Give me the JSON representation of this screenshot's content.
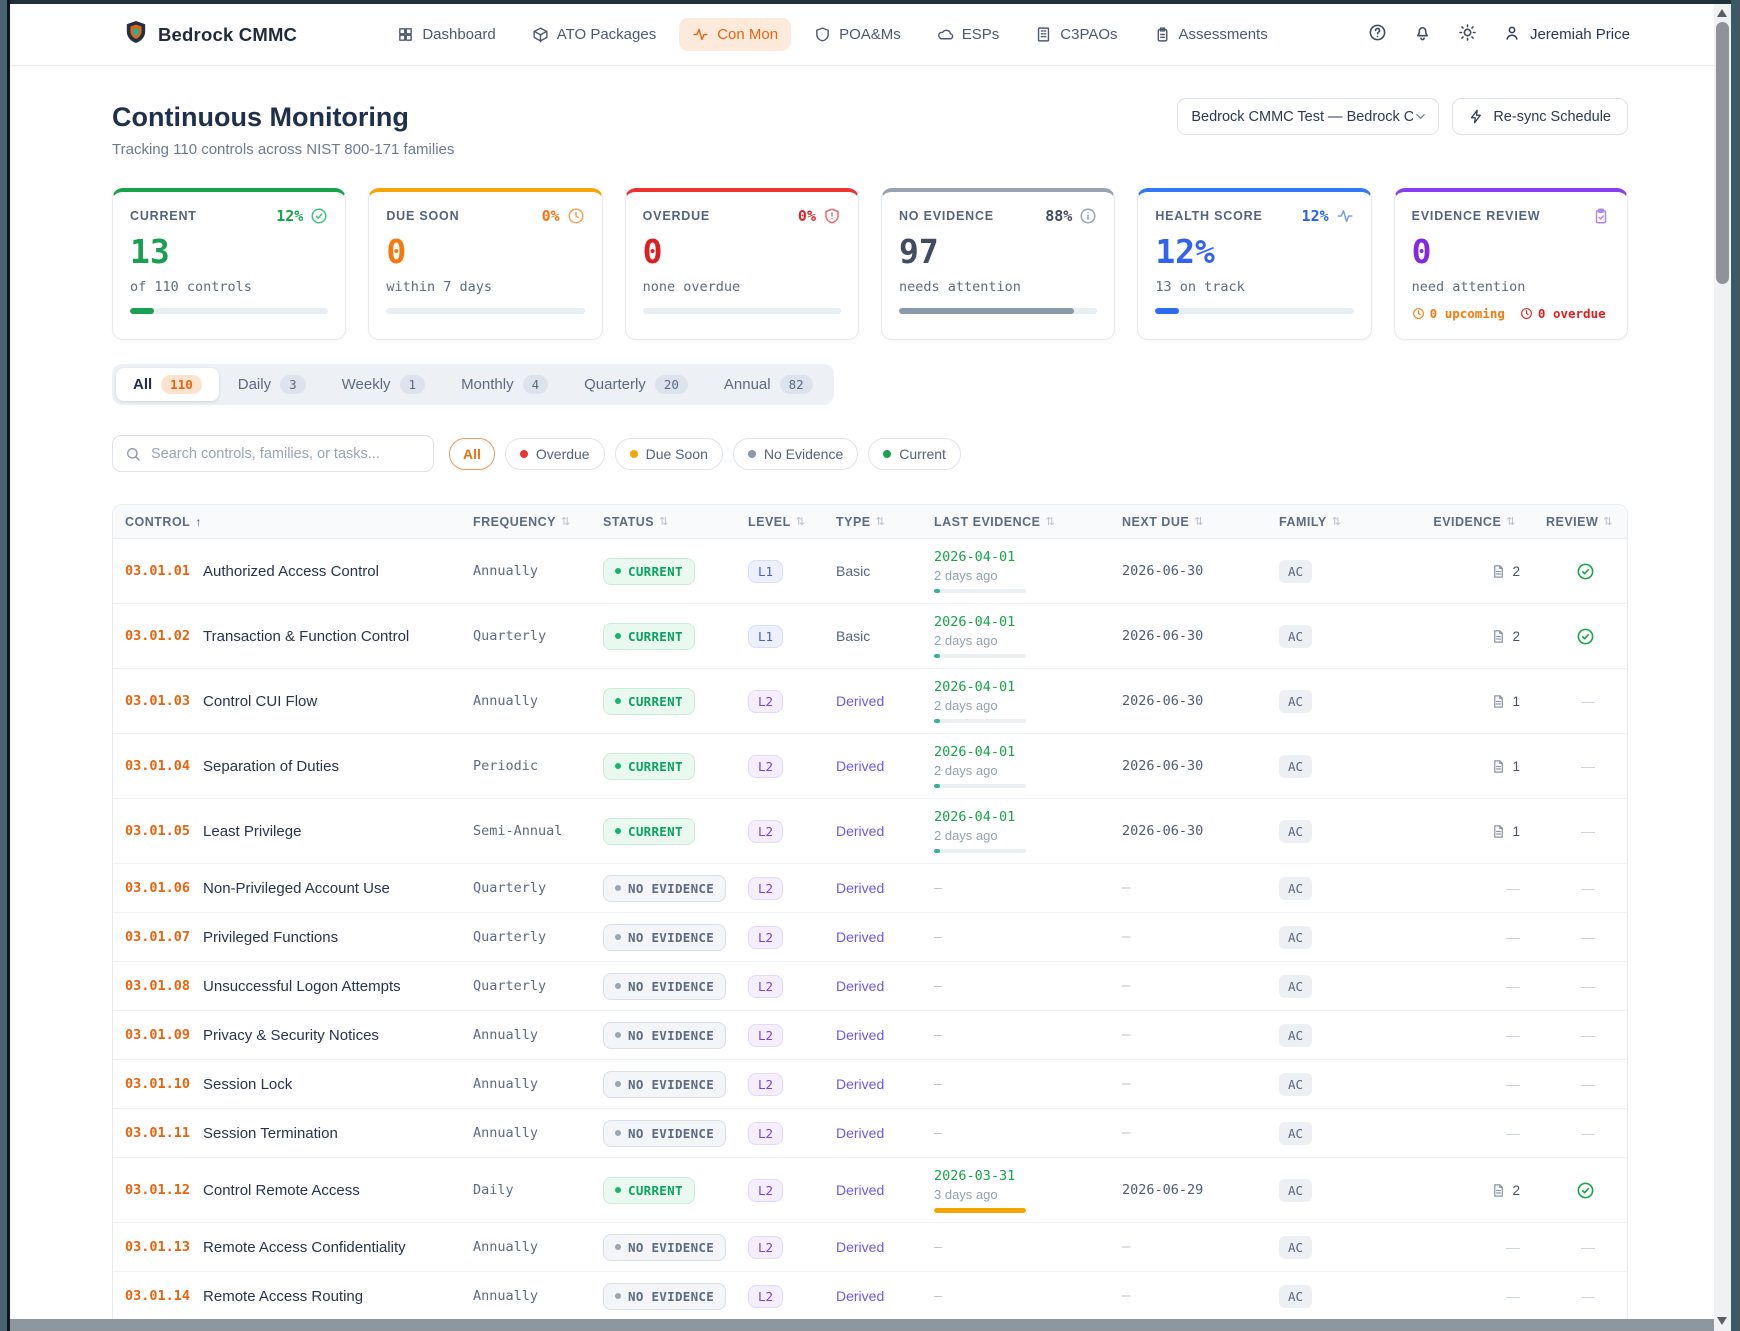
{
  "nav": {
    "brand": "Bedrock CMMC",
    "items": [
      {
        "label": "Dashboard",
        "icon": "grid",
        "active": false
      },
      {
        "label": "ATO Packages",
        "icon": "package",
        "active": false
      },
      {
        "label": "Con Mon",
        "icon": "pulse",
        "active": true
      },
      {
        "label": "POA&Ms",
        "icon": "shield",
        "active": false
      },
      {
        "label": "ESPs",
        "icon": "cloud",
        "active": false
      },
      {
        "label": "C3PAOs",
        "icon": "building",
        "active": false
      },
      {
        "label": "Assessments",
        "icon": "clipboard",
        "active": false
      }
    ],
    "action_icons": [
      {
        "name": "help-icon",
        "icon": "help"
      },
      {
        "name": "bell-icon",
        "icon": "bell"
      },
      {
        "name": "theme-icon",
        "icon": "sun"
      }
    ],
    "user": "Jeremiah Price"
  },
  "header": {
    "title": "Continuous Monitoring",
    "subtitle": "Tracking 110 controls across NIST 800-171 families",
    "package_select": "Bedrock CMMC Test — Bedrock CN",
    "resync_label": "Re-sync Schedule"
  },
  "stats": [
    {
      "label": "CURRENT",
      "pct": "12%",
      "icon": "check-circle",
      "accent": "#16a34a",
      "pct_color": "#16a34a",
      "icon_color": "#3fbf7f",
      "value": "13",
      "value_color": "#17a050",
      "sub": "of 110 controls",
      "progress": 12,
      "bar_color": "#17a050"
    },
    {
      "label": "DUE SOON",
      "pct": "0%",
      "icon": "clock",
      "accent": "#f6a609",
      "pct_color": "#f97316",
      "icon_color": "#f9a05a",
      "value": "0",
      "value_color": "#f9780d",
      "sub": "within 7 days",
      "progress": 0,
      "bar_color": "#f9780d"
    },
    {
      "label": "OVERDUE",
      "pct": "0%",
      "icon": "shield-alert",
      "accent": "#ee3333",
      "pct_color": "#dc2626",
      "icon_color": "#ea6a6a",
      "value": "0",
      "value_color": "#dd1f1f",
      "sub": "none overdue",
      "progress": 0,
      "bar_color": "#dd1f1f"
    },
    {
      "label": "NO EVIDENCE",
      "pct": "88%",
      "icon": "info",
      "accent": "#97a3b1",
      "pct_color": "#3f4c61",
      "icon_color": "#96a3b3",
      "value": "97",
      "value_color": "#3f4c61",
      "sub": "needs attention",
      "progress": 88,
      "bar_color": "#8a99ab"
    },
    {
      "label": "HEALTH SCORE",
      "pct": "12%",
      "icon": "pulse",
      "accent": "#3579f6",
      "pct_color": "#2563eb",
      "icon_color": "#7a9bf5",
      "value": "12%",
      "value_color": "#2f63f0",
      "sub": "13 on track",
      "progress": 12,
      "bar_color": "#2f6bf0"
    },
    {
      "label": "EVIDENCE REVIEW",
      "pct": null,
      "icon": "clipboard-check",
      "accent": "#8b3df2",
      "pct_color": null,
      "icon_color": "#b187ef",
      "value": "0",
      "value_color": "#8429e0",
      "sub": "need attention",
      "progress": null,
      "bar_color": null,
      "footer": [
        {
          "icon": "clock",
          "text": "0 upcoming",
          "color": "#f9780d"
        },
        {
          "icon": "clock",
          "text": "0 overdue",
          "color": "#dd1f1f"
        }
      ]
    }
  ],
  "tabs": [
    {
      "label": "All",
      "count": "110",
      "active": true
    },
    {
      "label": "Daily",
      "count": "3",
      "active": false
    },
    {
      "label": "Weekly",
      "count": "1",
      "active": false
    },
    {
      "label": "Monthly",
      "count": "4",
      "active": false
    },
    {
      "label": "Quarterly",
      "count": "20",
      "active": false
    },
    {
      "label": "Annual",
      "count": "82",
      "active": false
    }
  ],
  "filters": {
    "search_placeholder": "Search controls, families, or tasks...",
    "chips": [
      {
        "label": "All",
        "active": true,
        "dot": null
      },
      {
        "label": "Overdue",
        "active": false,
        "dot": "#ee3333"
      },
      {
        "label": "Due Soon",
        "active": false,
        "dot": "#f6a609"
      },
      {
        "label": "No Evidence",
        "active": false,
        "dot": "#8a99ab"
      },
      {
        "label": "Current",
        "active": false,
        "dot": "#17a050"
      }
    ]
  },
  "table": {
    "columns": [
      {
        "label": "CONTROL",
        "sort": "asc",
        "align": "left"
      },
      {
        "label": "FREQUENCY",
        "sort": "both",
        "align": "left"
      },
      {
        "label": "STATUS",
        "sort": "both",
        "align": "left"
      },
      {
        "label": "LEVEL",
        "sort": "both",
        "align": "left"
      },
      {
        "label": "TYPE",
        "sort": "both",
        "align": "left"
      },
      {
        "label": "LAST EVIDENCE",
        "sort": "both",
        "align": "left"
      },
      {
        "label": "NEXT DUE",
        "sort": "both",
        "align": "left"
      },
      {
        "label": "FAMILY",
        "sort": "both",
        "align": "left"
      },
      {
        "label": "EVIDENCE",
        "sort": "both",
        "align": "right"
      },
      {
        "label": "REVIEW",
        "sort": "both",
        "align": "right"
      }
    ],
    "rows": [
      {
        "id": "03.01.01",
        "name": "Authorized Access Control",
        "frequency": "Annually",
        "status": "CURRENT",
        "level": "L1",
        "type": "Basic",
        "last_evidence": {
          "date": "2026-04-01",
          "ago": "2 days ago",
          "bar": 6,
          "bar_color": "#34b39a"
        },
        "next_due": "2026-06-30",
        "family": "AC",
        "evidence": "2",
        "review": "check"
      },
      {
        "id": "03.01.02",
        "name": "Transaction & Function Control",
        "frequency": "Quarterly",
        "status": "CURRENT",
        "level": "L1",
        "type": "Basic",
        "last_evidence": {
          "date": "2026-04-01",
          "ago": "2 days ago",
          "bar": 6,
          "bar_color": "#34b39a"
        },
        "next_due": "2026-06-30",
        "family": "AC",
        "evidence": "2",
        "review": "check"
      },
      {
        "id": "03.01.03",
        "name": "Control CUI Flow",
        "frequency": "Annually",
        "status": "CURRENT",
        "level": "L2",
        "type": "Derived",
        "last_evidence": {
          "date": "2026-04-01",
          "ago": "2 days ago",
          "bar": 6,
          "bar_color": "#34b39a"
        },
        "next_due": "2026-06-30",
        "family": "AC",
        "evidence": "1",
        "review": "dash"
      },
      {
        "id": "03.01.04",
        "name": "Separation of Duties",
        "frequency": "Periodic",
        "status": "CURRENT",
        "level": "L2",
        "type": "Derived",
        "last_evidence": {
          "date": "2026-04-01",
          "ago": "2 days ago",
          "bar": 6,
          "bar_color": "#34b39a"
        },
        "next_due": "2026-06-30",
        "family": "AC",
        "evidence": "1",
        "review": "dash"
      },
      {
        "id": "03.01.05",
        "name": "Least Privilege",
        "frequency": "Semi-Annual",
        "status": "CURRENT",
        "level": "L2",
        "type": "Derived",
        "last_evidence": {
          "date": "2026-04-01",
          "ago": "2 days ago",
          "bar": 6,
          "bar_color": "#34b39a"
        },
        "next_due": "2026-06-30",
        "family": "AC",
        "evidence": "1",
        "review": "dash"
      },
      {
        "id": "03.01.06",
        "name": "Non-Privileged Account Use",
        "frequency": "Quarterly",
        "status": "NO EVIDENCE",
        "level": "L2",
        "type": "Derived",
        "last_evidence": null,
        "next_due": "–",
        "family": "AC",
        "evidence": null,
        "review": "dash"
      },
      {
        "id": "03.01.07",
        "name": "Privileged Functions",
        "frequency": "Quarterly",
        "status": "NO EVIDENCE",
        "level": "L2",
        "type": "Derived",
        "last_evidence": null,
        "next_due": "–",
        "family": "AC",
        "evidence": null,
        "review": "dash"
      },
      {
        "id": "03.01.08",
        "name": "Unsuccessful Logon Attempts",
        "frequency": "Quarterly",
        "status": "NO EVIDENCE",
        "level": "L2",
        "type": "Derived",
        "last_evidence": null,
        "next_due": "–",
        "family": "AC",
        "evidence": null,
        "review": "dash"
      },
      {
        "id": "03.01.09",
        "name": "Privacy & Security Notices",
        "frequency": "Annually",
        "status": "NO EVIDENCE",
        "level": "L2",
        "type": "Derived",
        "last_evidence": null,
        "next_due": "–",
        "family": "AC",
        "evidence": null,
        "review": "dash"
      },
      {
        "id": "03.01.10",
        "name": "Session Lock",
        "frequency": "Annually",
        "status": "NO EVIDENCE",
        "level": "L2",
        "type": "Derived",
        "last_evidence": null,
        "next_due": "–",
        "family": "AC",
        "evidence": null,
        "review": "dash"
      },
      {
        "id": "03.01.11",
        "name": "Session Termination",
        "frequency": "Annually",
        "status": "NO EVIDENCE",
        "level": "L2",
        "type": "Derived",
        "last_evidence": null,
        "next_due": "–",
        "family": "AC",
        "evidence": null,
        "review": "dash"
      },
      {
        "id": "03.01.12",
        "name": "Control Remote Access",
        "frequency": "Daily",
        "status": "CURRENT",
        "level": "L2",
        "type": "Derived",
        "last_evidence": {
          "date": "2026-03-31",
          "ago": "3 days ago",
          "bar": 100,
          "bar_color": "#f5a300"
        },
        "next_due": "2026-06-29",
        "family": "AC",
        "evidence": "2",
        "review": "check"
      },
      {
        "id": "03.01.13",
        "name": "Remote Access Confidentiality",
        "frequency": "Annually",
        "status": "NO EVIDENCE",
        "level": "L2",
        "type": "Derived",
        "last_evidence": null,
        "next_due": "–",
        "family": "AC",
        "evidence": null,
        "review": "dash"
      },
      {
        "id": "03.01.14",
        "name": "Remote Access Routing",
        "frequency": "Annually",
        "status": "NO EVIDENCE",
        "level": "L2",
        "type": "Derived",
        "last_evidence": null,
        "next_due": "–",
        "family": "AC",
        "evidence": null,
        "review": "dash"
      }
    ]
  }
}
